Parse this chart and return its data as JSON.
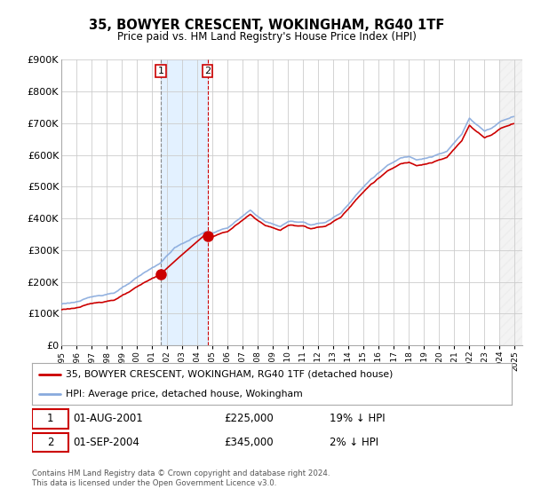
{
  "title": "35, BOWYER CRESCENT, WOKINGHAM, RG40 1TF",
  "subtitle": "Price paid vs. HM Land Registry's House Price Index (HPI)",
  "ylim": [
    0,
    900000
  ],
  "yticks": [
    0,
    100000,
    200000,
    300000,
    400000,
    500000,
    600000,
    700000,
    800000,
    900000
  ],
  "ytick_labels": [
    "£0",
    "£100K",
    "£200K",
    "£300K",
    "£400K",
    "£500K",
    "£600K",
    "£700K",
    "£800K",
    "£900K"
  ],
  "xlim_start": 1995.0,
  "xlim_end": 2025.5,
  "hatch_start": 2024.0,
  "shade_start": 2001.58,
  "shade_end": 2004.67,
  "transaction1": {
    "year": 2001.58,
    "price": 225000,
    "label": "1",
    "date": "01-AUG-2001",
    "pct": "19% ↓ HPI"
  },
  "transaction2": {
    "year": 2004.67,
    "price": 345000,
    "label": "2",
    "date": "01-SEP-2004",
    "pct": "2% ↓ HPI"
  },
  "line_color_paid": "#cc0000",
  "line_color_hpi": "#88aadd",
  "legend_label_paid": "35, BOWYER CRESCENT, WOKINGHAM, RG40 1TF (detached house)",
  "legend_label_hpi": "HPI: Average price, detached house, Wokingham",
  "footer": "Contains HM Land Registry data © Crown copyright and database right 2024.\nThis data is licensed under the Open Government Licence v3.0.",
  "table_row1": [
    "1",
    "01-AUG-2001",
    "£225,000",
    "19% ↓ HPI"
  ],
  "table_row2": [
    "2",
    "01-SEP-2004",
    "£345,000",
    "2% ↓ HPI"
  ],
  "background_color": "#ffffff",
  "grid_color": "#cccccc"
}
